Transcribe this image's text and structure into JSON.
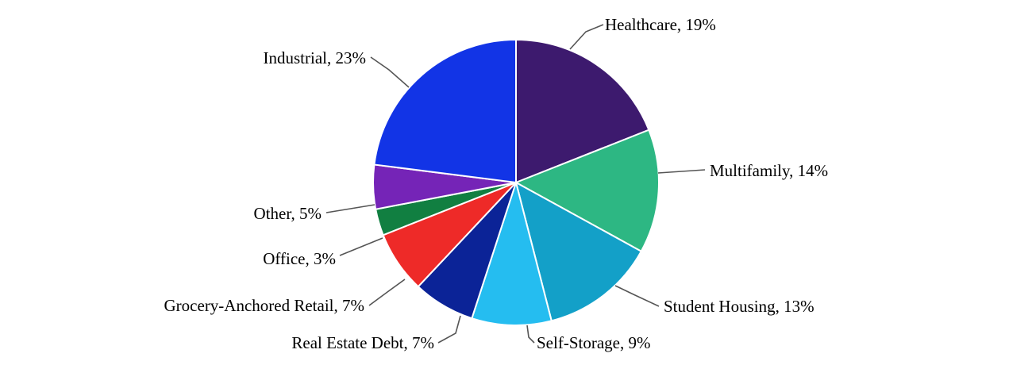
{
  "chart_data": {
    "type": "pie",
    "title": "",
    "start": "top",
    "direction": "clockwise",
    "slices": [
      {
        "label": "Healthcare",
        "value": 19,
        "display": "Healthcare, 19%",
        "color": "#3d1a6e"
      },
      {
        "label": "Multifamily",
        "value": 14,
        "display": "Multifamily, 14%",
        "color": "#2db783"
      },
      {
        "label": "Student Housing",
        "value": 13,
        "display": "Student Housing, 13%",
        "color": "#13a0c8"
      },
      {
        "label": "Self-Storage",
        "value": 9,
        "display": "Self-Storage, 9%",
        "color": "#25bdf0"
      },
      {
        "label": "Real Estate Debt",
        "value": 7,
        "display": "Real Estate Debt, 7%",
        "color": "#0b2397"
      },
      {
        "label": "Grocery-Anchored Retail",
        "value": 7,
        "display": "Grocery-Anchored Retail, 7%",
        "color": "#ee2a28"
      },
      {
        "label": "Office",
        "value": 3,
        "display": "Office, 3%",
        "color": "#117f41"
      },
      {
        "label": "Other",
        "value": 5,
        "display": "Other, 5%",
        "color": "#7524b7"
      },
      {
        "label": "Industrial",
        "value": 23,
        "display": "Industrial, 23%",
        "color": "#1234e6"
      }
    ]
  }
}
